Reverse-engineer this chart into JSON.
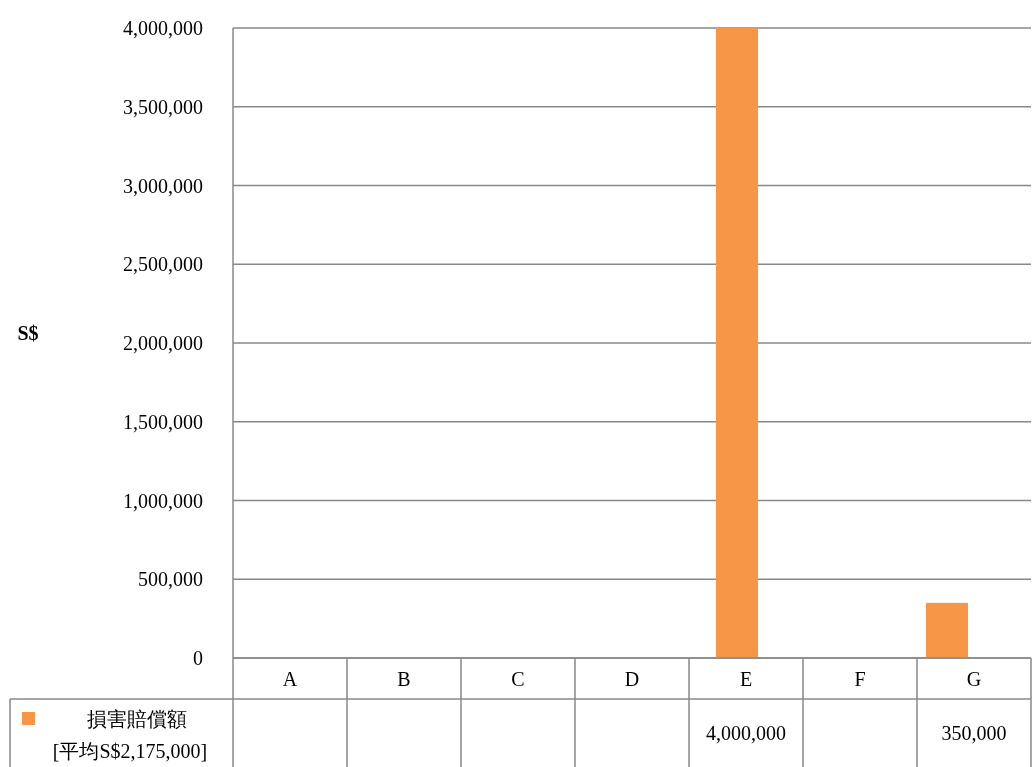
{
  "chart_data": {
    "type": "bar",
    "ylabel": "S$",
    "categories": [
      "A",
      "B",
      "C",
      "D",
      "E",
      "F",
      "G"
    ],
    "series": [
      {
        "name": "損害賠償額\n[平均S$2,175,000]",
        "color": "#f79646",
        "values": [
          null,
          null,
          null,
          null,
          4000000,
          null,
          350000
        ],
        "value_labels": [
          null,
          null,
          null,
          null,
          "4,000,000",
          null,
          "350,000"
        ]
      }
    ],
    "ylim": [
      0,
      4000000
    ],
    "yticks": [
      {
        "value": 0,
        "label": "0"
      },
      {
        "value": 500000,
        "label": "500,000"
      },
      {
        "value": 1000000,
        "label": "1,000,000"
      },
      {
        "value": 1500000,
        "label": "1,500,000"
      },
      {
        "value": 2000000,
        "label": "2,000,000"
      },
      {
        "value": 2500000,
        "label": "2,500,000"
      },
      {
        "value": 3000000,
        "label": "3,000,000"
      },
      {
        "value": 3500000,
        "label": "3,500,000"
      },
      {
        "value": 4000000,
        "label": "4,000,000"
      }
    ],
    "grid": "y",
    "legend": "bottom"
  }
}
